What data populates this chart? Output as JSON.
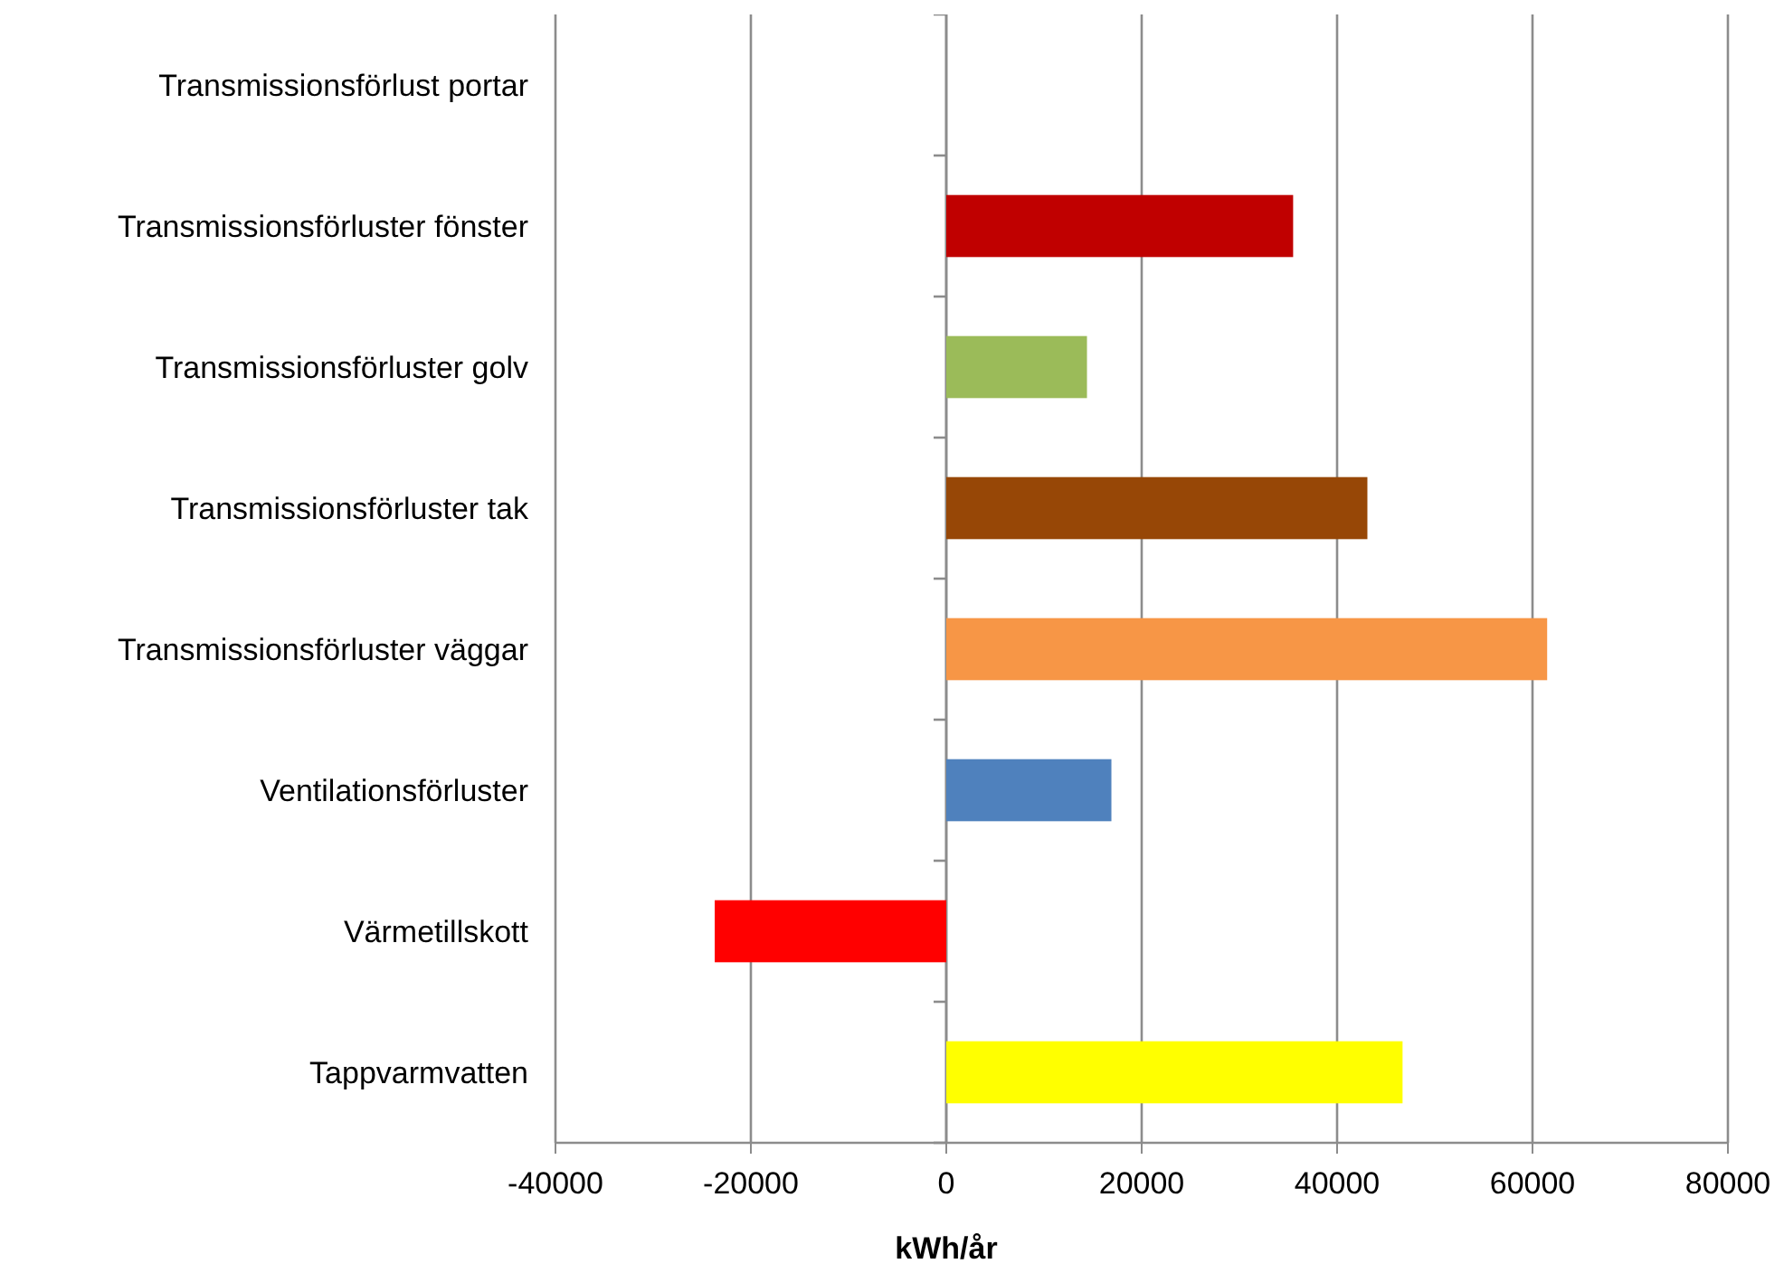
{
  "chart_data": {
    "type": "bar",
    "orientation": "horizontal",
    "xlabel": "kWh/år",
    "categories": [
      "Transmissionsförlust portar",
      "Transmissionsförluster fönster",
      "Transmissionsförluster golv",
      "Transmissionsförluster tak",
      "Transmissionsförluster väggar",
      "Ventilationsförluster",
      "Värmetillskott",
      "Tappvarmvatten"
    ],
    "values": [
      null,
      35500,
      14400,
      43100,
      61500,
      16900,
      -23700,
      46700
    ],
    "colors": [
      null,
      "#c00000",
      "#9bbb59",
      "#974706",
      "#f79646",
      "#4f81bd",
      "#ff0000",
      "#ffff00"
    ],
    "xlim": [
      -40000,
      80000
    ],
    "xticks": [
      -40000,
      -20000,
      0,
      20000,
      40000,
      60000,
      80000
    ],
    "grid": "x"
  }
}
